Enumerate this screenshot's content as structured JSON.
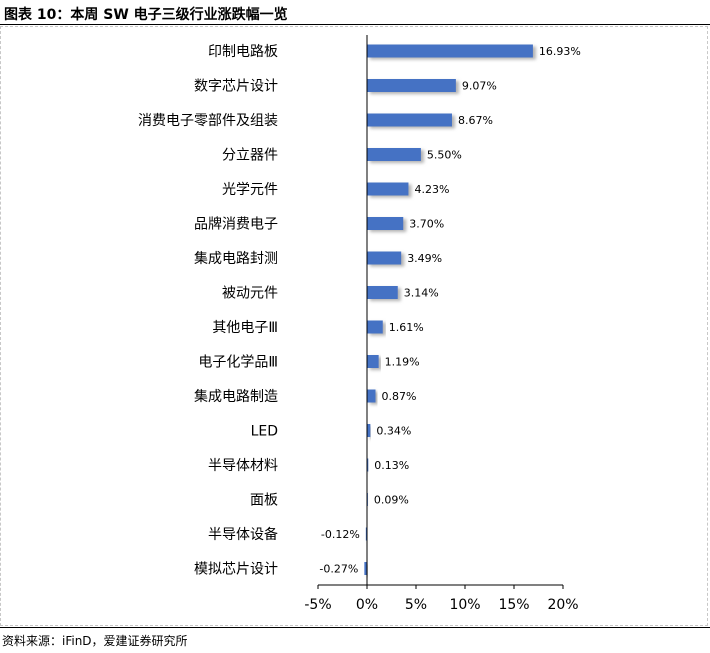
{
  "title": "图表 10：本周 SW 电子三级行业涨跌幅一览",
  "source": "资料来源：iFinD，爱建证券研究所",
  "colors": {
    "bar": "#4472C4",
    "shadow": "#bfbfbf",
    "axis": "#000000"
  },
  "chart_data": {
    "type": "bar",
    "orientation": "horizontal",
    "title": "",
    "xlabel": "",
    "ylabel": "",
    "xlim": [
      -5,
      20
    ],
    "xticks": [
      -5,
      0,
      5,
      10,
      15,
      20
    ],
    "xtick_labels": [
      "-5%",
      "0%",
      "5%",
      "10%",
      "15%",
      "20%"
    ],
    "grid": false,
    "legend": "none",
    "categories": [
      "印制电路板",
      "数字芯片设计",
      "消费电子零部件及组装",
      "分立器件",
      "光学元件",
      "品牌消费电子",
      "集成电路封测",
      "被动元件",
      "其他电子Ⅲ",
      "电子化学品Ⅲ",
      "集成电路制造",
      "LED",
      "半导体材料",
      "面板",
      "半导体设备",
      "模拟芯片设计"
    ],
    "values": [
      16.93,
      9.07,
      8.67,
      5.5,
      4.23,
      3.7,
      3.49,
      3.14,
      1.61,
      1.19,
      0.87,
      0.34,
      0.13,
      0.09,
      -0.12,
      -0.27
    ],
    "value_labels": [
      "16.93%",
      "9.07%",
      "8.67%",
      "5.50%",
      "4.23%",
      "3.70%",
      "3.49%",
      "3.14%",
      "1.61%",
      "1.19%",
      "0.87%",
      "0.34%",
      "0.13%",
      "0.09%",
      "-0.12%",
      "-0.27%"
    ]
  }
}
